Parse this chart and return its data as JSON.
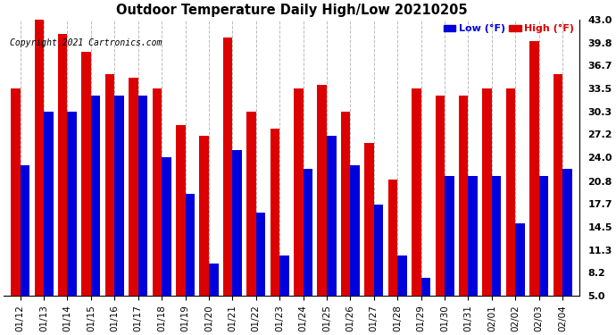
{
  "title": "Outdoor Temperature Daily High/Low 20210205",
  "copyright": "Copyright 2021 Cartronics.com",
  "legend_low": "Low",
  "legend_high": "High",
  "legend_unit": "(°F)",
  "low_color": "#0000dd",
  "high_color": "#dd0000",
  "background_color": "#ffffff",
  "grid_color": "#bbbbbb",
  "ylim_min": 5.0,
  "ylim_max": 43.0,
  "yticks": [
    5.0,
    8.2,
    11.3,
    14.5,
    17.7,
    20.8,
    24.0,
    27.2,
    30.3,
    33.5,
    36.7,
    39.8,
    43.0
  ],
  "dates": [
    "01/12",
    "01/13",
    "01/14",
    "01/15",
    "01/16",
    "01/17",
    "01/18",
    "01/19",
    "01/20",
    "01/21",
    "01/22",
    "01/23",
    "01/24",
    "01/25",
    "01/26",
    "01/27",
    "01/28",
    "01/29",
    "01/30",
    "01/31",
    "02/01",
    "02/02",
    "02/03",
    "02/04"
  ],
  "highs": [
    33.5,
    43.0,
    41.0,
    38.5,
    35.5,
    35.0,
    33.5,
    28.5,
    27.0,
    40.5,
    30.3,
    28.0,
    33.5,
    34.0,
    30.3,
    26.0,
    21.0,
    33.5,
    32.5,
    32.5,
    33.5,
    33.5,
    40.0,
    35.5
  ],
  "lows": [
    23.0,
    30.3,
    30.3,
    32.5,
    32.5,
    32.5,
    24.0,
    19.0,
    9.5,
    25.0,
    16.5,
    10.5,
    22.5,
    27.0,
    23.0,
    17.5,
    10.5,
    7.5,
    21.5,
    21.5,
    21.5,
    15.0,
    21.5,
    22.5
  ]
}
